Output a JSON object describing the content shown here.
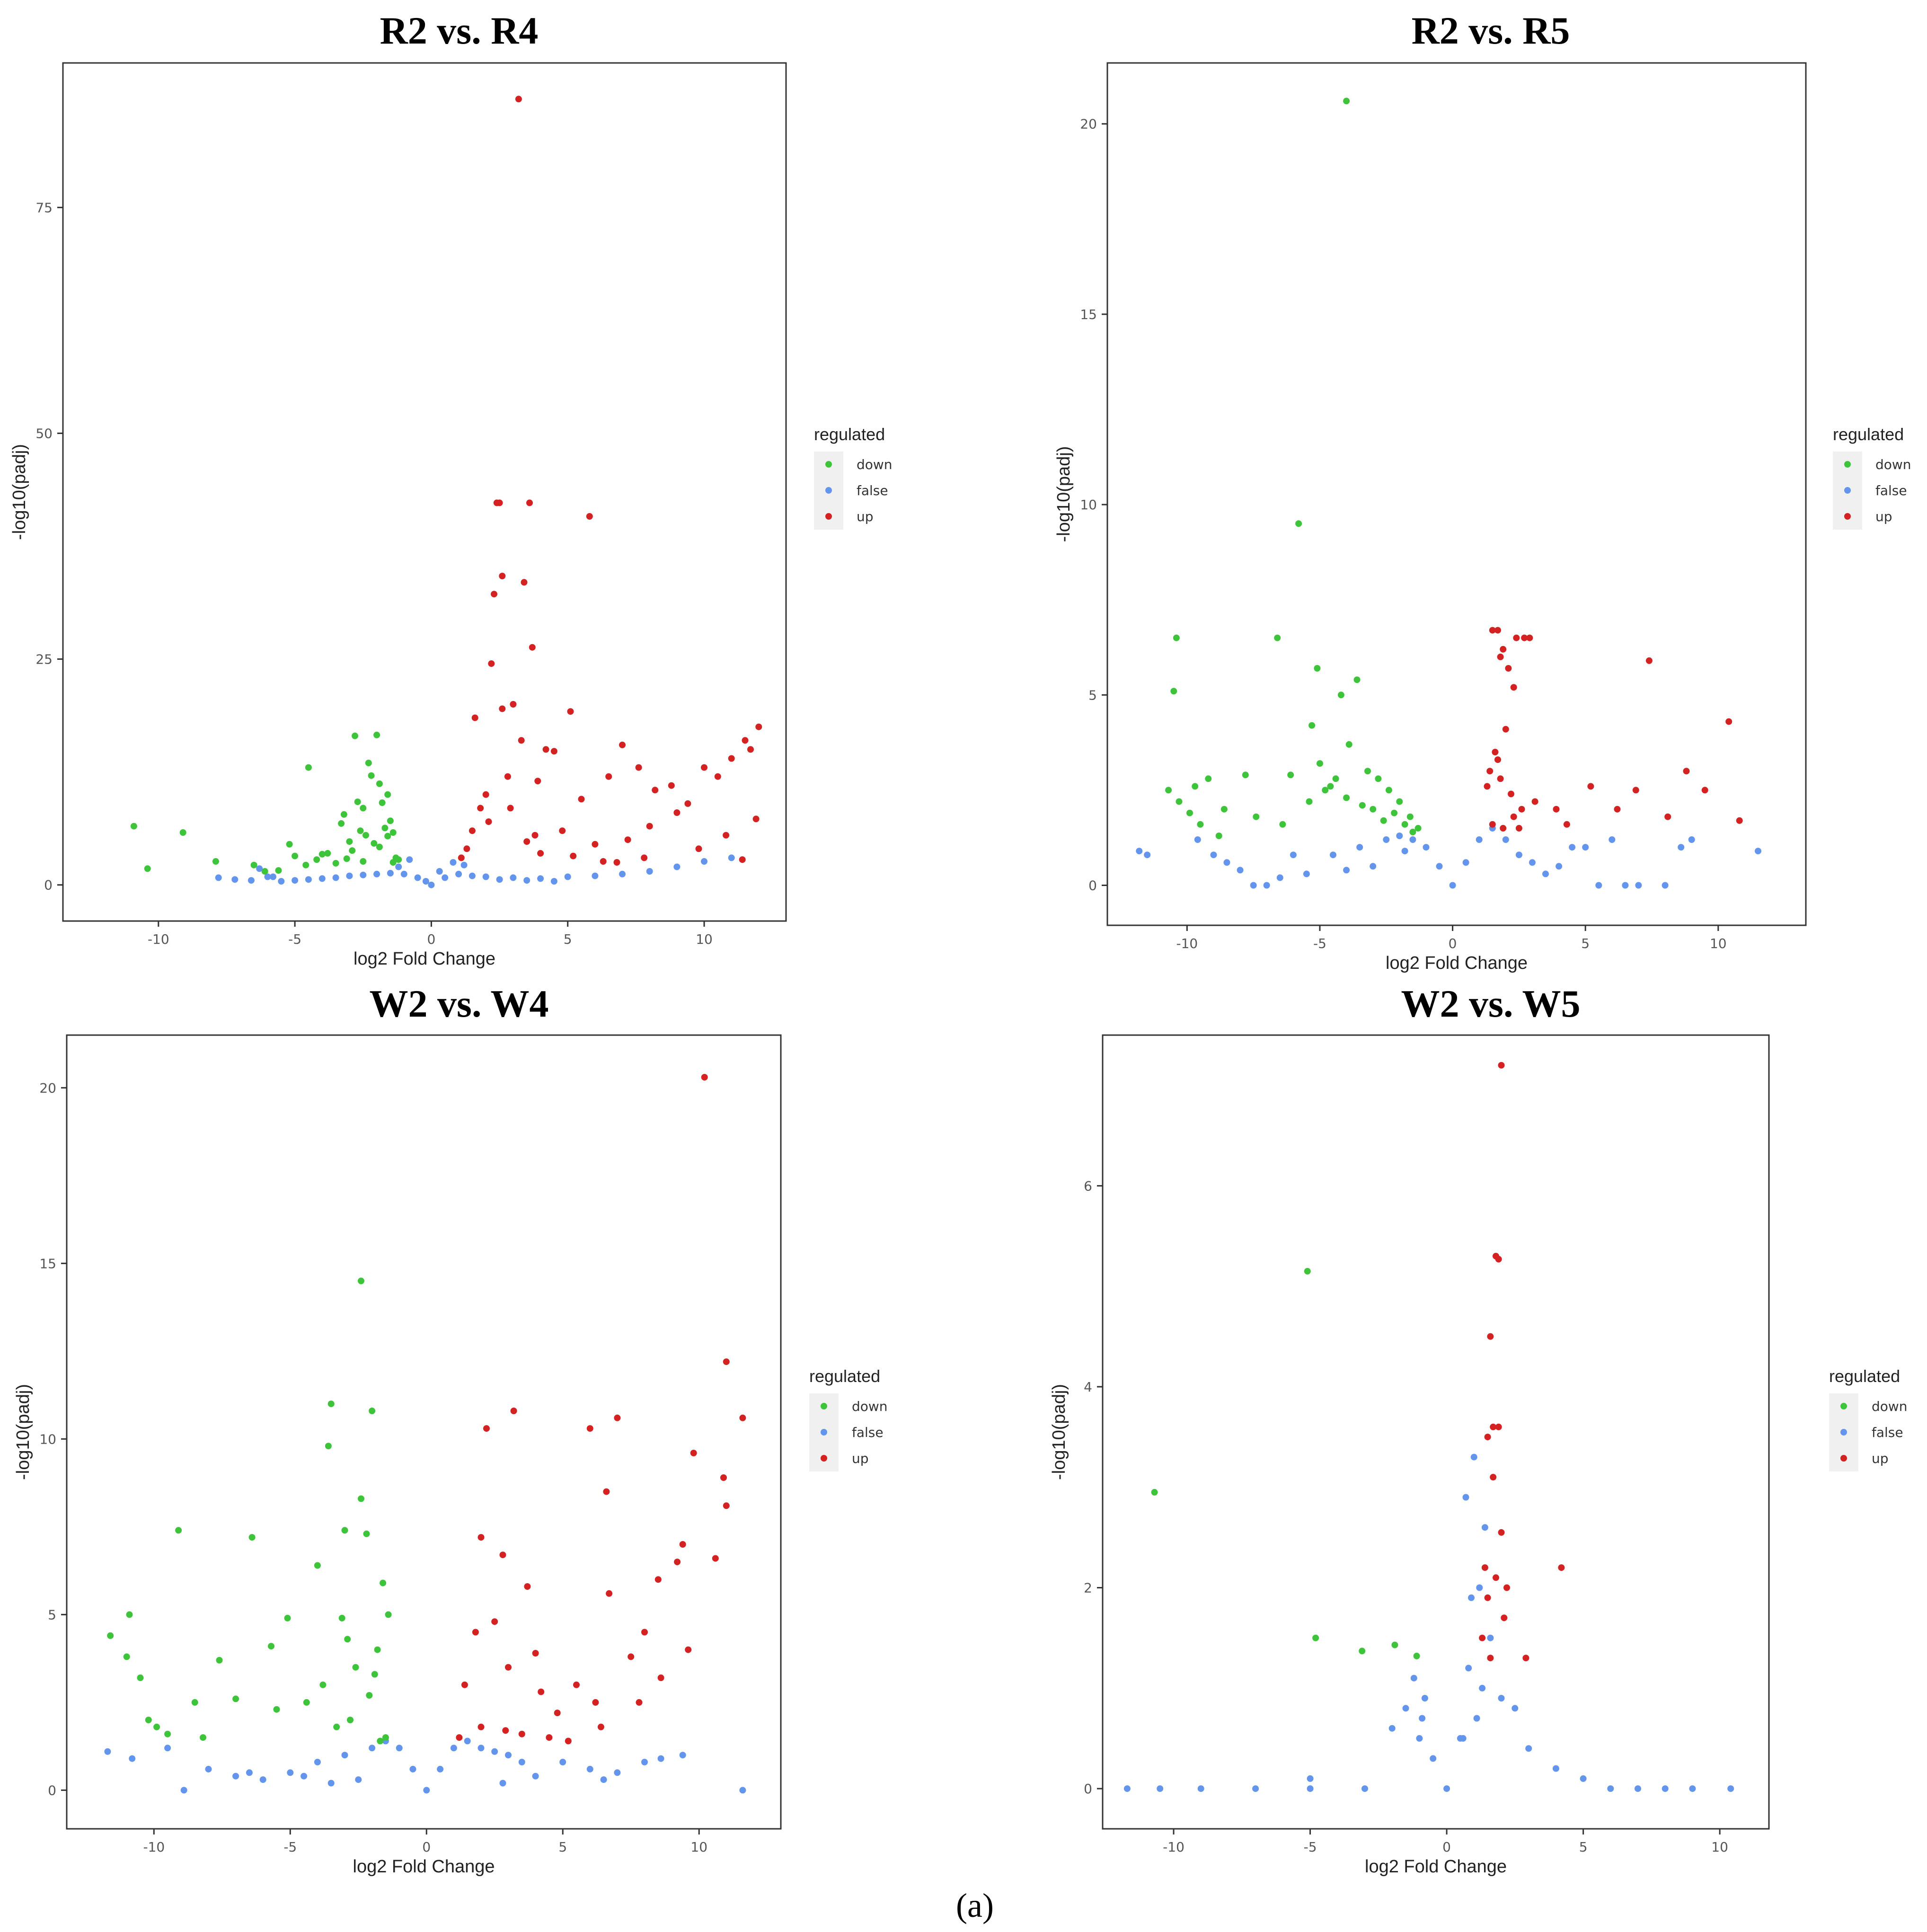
{
  "figure": {
    "caption": "(a)",
    "colors": {
      "down": "#3ec43a",
      "false": "#6495ed",
      "up": "#d42222"
    }
  },
  "chart_data": [
    {
      "type": "scatter",
      "title": "R2 vs. R4",
      "xlabel": "log2 Fold Change",
      "ylabel": "-log10(padj)",
      "xlim": [
        -13.5,
        13
      ],
      "ylim": [
        -4,
        91
      ],
      "xticks": [
        -10,
        -5,
        0,
        5,
        10
      ],
      "yticks": [
        0,
        25,
        50,
        75
      ],
      "legend": {
        "title": "regulated",
        "entries": [
          "down",
          "false",
          "up"
        ],
        "position": "right"
      },
      "series": [
        {
          "name": "down",
          "x": [
            -10.9,
            -10.4,
            -9.1,
            -7.9,
            -6.5,
            -5.2,
            -5.0,
            -4.5,
            -3.2,
            -2.8,
            -2.5,
            -2.3,
            -2.0,
            -1.8,
            -1.6,
            -1.4,
            -3.8,
            -4.2,
            -2.2,
            -1.9,
            -2.6,
            -1.5,
            -3.0,
            -2.4,
            -1.7,
            -1.3,
            -3.5,
            -4.6,
            -2.9,
            -2.1,
            -1.6,
            -1.2,
            -4.0,
            -3.3,
            -2.7,
            -1.9,
            -1.4,
            -2.5,
            -3.1,
            -5.6,
            -6.1
          ],
          "y": [
            6.5,
            1.8,
            5.8,
            2.6,
            2.2,
            4.5,
            3.2,
            13.0,
            7.8,
            16.5,
            8.5,
            13.5,
            16.6,
            9.1,
            10.0,
            2.5,
            3.5,
            2.8,
            12.1,
            11.2,
            6.0,
            7.1,
            4.8,
            5.5,
            6.3,
            3.0,
            2.4,
            2.2,
            3.8,
            4.6,
            5.4,
            2.8,
            3.4,
            6.8,
            9.2,
            4.2,
            5.8,
            2.6,
            2.9,
            1.6,
            1.5
          ]
        },
        {
          "name": "false",
          "x": [
            -7.8,
            -7.2,
            -6.6,
            -6.0,
            -5.5,
            -5.0,
            -4.5,
            -4.0,
            -3.5,
            -3.0,
            -2.5,
            -2.0,
            -1.5,
            -1.0,
            -0.5,
            0.0,
            0.5,
            1.0,
            1.5,
            2.0,
            3.0,
            4.0,
            5.0,
            6.0,
            7.0,
            8.0,
            9.0,
            10.0,
            11.0,
            -0.8,
            0.3,
            -0.2,
            0.8,
            -6.3,
            -5.8,
            -1.2,
            1.2,
            2.5,
            3.5,
            4.5
          ],
          "y": [
            0.8,
            0.6,
            0.5,
            0.9,
            0.4,
            0.5,
            0.6,
            0.7,
            0.8,
            1.0,
            1.1,
            1.2,
            1.3,
            1.2,
            0.8,
            0.0,
            0.8,
            1.2,
            1.0,
            0.9,
            0.8,
            0.7,
            0.9,
            1.0,
            1.2,
            1.5,
            2.0,
            2.6,
            3.0,
            2.8,
            1.5,
            0.4,
            2.5,
            1.8,
            0.9,
            2.0,
            2.2,
            0.6,
            0.5,
            0.4
          ]
        },
        {
          "name": "up",
          "x": [
            3.2,
            2.4,
            2.5,
            3.6,
            5.8,
            2.6,
            3.4,
            2.3,
            3.7,
            2.2,
            1.6,
            2.6,
            3.0,
            3.3,
            5.1,
            2.8,
            4.2,
            2.0,
            1.8,
            3.9,
            4.5,
            5.5,
            6.5,
            7.0,
            7.6,
            8.2,
            8.8,
            9.4,
            10.0,
            10.5,
            11.0,
            11.5,
            12.0,
            11.7,
            11.9,
            9.0,
            8.0,
            7.2,
            6.0,
            4.8,
            3.8,
            1.3,
            1.1,
            1.5,
            2.1,
            2.9,
            3.5,
            4.0,
            6.8,
            7.8,
            9.8,
            10.8,
            11.4,
            5.2,
            6.3
          ],
          "y": [
            87.0,
            42.3,
            42.3,
            42.3,
            40.8,
            34.2,
            33.5,
            32.2,
            26.3,
            24.5,
            18.5,
            19.5,
            20.0,
            16.0,
            19.2,
            12.0,
            15.0,
            10.0,
            8.5,
            11.5,
            14.8,
            9.5,
            12.0,
            15.5,
            13.0,
            10.5,
            11.0,
            9.0,
            13.0,
            12.0,
            14.0,
            16.0,
            17.5,
            15.0,
            7.3,
            8.0,
            6.5,
            5.0,
            4.5,
            6.0,
            5.5,
            4.0,
            3.0,
            6.0,
            7.0,
            8.5,
            4.8,
            3.5,
            2.5,
            3.0,
            4.0,
            5.5,
            2.8,
            3.2,
            2.6
          ]
        }
      ]
    },
    {
      "type": "scatter",
      "title": "R2 vs. R5",
      "xlabel": "log2 Fold Change",
      "ylabel": "-log10(padj)",
      "xlim": [
        -13,
        13.3
      ],
      "ylim": [
        -1.05,
        21.6
      ],
      "xticks": [
        -10,
        -5,
        0,
        5,
        10
      ],
      "yticks": [
        0,
        5,
        10,
        15,
        20
      ],
      "legend": {
        "title": "regulated",
        "entries": [
          "down",
          "false",
          "up"
        ],
        "position": "right"
      },
      "series": [
        {
          "name": "down",
          "x": [
            -4.0,
            -5.8,
            -10.4,
            -10.5,
            -6.6,
            -5.1,
            -3.6,
            -4.2,
            -5.3,
            -3.9,
            -7.8,
            -6.1,
            -9.2,
            -9.7,
            -10.3,
            -10.7,
            -8.6,
            -7.4,
            -6.4,
            -5.4,
            -4.8,
            -4.4,
            -3.2,
            -2.8,
            -2.4,
            -2.0,
            -1.6,
            -1.3,
            -3.0,
            -2.6,
            -2.2,
            -1.8,
            -1.5,
            -5.0,
            -4.6,
            -4.0,
            -3.4,
            -9.9,
            -9.5,
            -8.8
          ],
          "y": [
            20.6,
            9.5,
            6.5,
            5.1,
            6.5,
            5.7,
            5.4,
            5.0,
            4.2,
            3.7,
            2.9,
            2.9,
            2.8,
            2.6,
            2.2,
            2.5,
            2.0,
            1.8,
            1.6,
            2.2,
            2.5,
            2.8,
            3.0,
            2.8,
            2.5,
            2.2,
            1.8,
            1.5,
            2.0,
            1.7,
            1.9,
            1.6,
            1.4,
            3.2,
            2.6,
            2.3,
            2.1,
            1.9,
            1.6,
            1.3
          ]
        },
        {
          "name": "false",
          "x": [
            -11.8,
            -11.5,
            -8.5,
            -8.0,
            -7.5,
            -6.5,
            -5.5,
            -4.5,
            -3.5,
            -2.5,
            -2.0,
            -1.5,
            -1.0,
            -0.5,
            0.0,
            0.5,
            1.0,
            1.5,
            2.0,
            2.5,
            3.0,
            4.0,
            5.0,
            6.0,
            7.0,
            8.0,
            9.0,
            11.5,
            -9.0,
            -9.6,
            -7.0,
            -3.0,
            3.5,
            4.5,
            8.6,
            6.5,
            5.5,
            -6.0,
            -4.0,
            -1.8
          ],
          "y": [
            0.9,
            0.8,
            0.6,
            0.4,
            0.0,
            0.2,
            0.3,
            0.8,
            1.0,
            1.2,
            1.3,
            1.2,
            1.0,
            0.5,
            0.0,
            0.6,
            1.2,
            1.5,
            1.2,
            0.8,
            0.6,
            0.5,
            1.0,
            1.2,
            0.0,
            0.0,
            1.2,
            0.9,
            0.8,
            1.2,
            0.0,
            0.5,
            0.3,
            1.0,
            1.0,
            0.0,
            0.0,
            0.8,
            0.4,
            0.9
          ]
        },
        {
          "name": "up",
          "x": [
            1.5,
            1.7,
            1.9,
            1.8,
            2.1,
            2.4,
            2.7,
            2.9,
            7.4,
            10.4,
            2.3,
            2.0,
            1.6,
            1.4,
            1.3,
            1.8,
            2.2,
            2.6,
            3.1,
            3.9,
            4.3,
            5.2,
            6.2,
            6.9,
            8.1,
            8.8,
            9.5,
            10.8,
            1.5,
            1.9,
            2.3,
            1.7,
            2.5
          ],
          "y": [
            6.7,
            6.7,
            6.2,
            6.0,
            5.7,
            6.5,
            6.5,
            6.5,
            5.9,
            4.3,
            5.2,
            4.1,
            3.5,
            3.0,
            2.6,
            2.8,
            2.4,
            2.0,
            2.2,
            2.0,
            1.6,
            2.6,
            2.0,
            2.5,
            1.8,
            3.0,
            2.5,
            1.7,
            1.6,
            1.5,
            1.8,
            3.3,
            1.5
          ]
        }
      ]
    },
    {
      "type": "scatter",
      "title": "W2 vs. W4",
      "xlabel": "log2 Fold Change",
      "ylabel": "-log10(padj)",
      "xlim": [
        -13.2,
        13
      ],
      "ylim": [
        -1.1,
        21.5
      ],
      "xticks": [
        -10,
        -5,
        0,
        5,
        10
      ],
      "yticks": [
        0,
        5,
        10,
        15,
        20
      ],
      "legend": {
        "title": "regulated",
        "entries": [
          "down",
          "false",
          "up"
        ],
        "position": "right"
      },
      "series": [
        {
          "name": "down",
          "x": [
            -2.4,
            -3.5,
            -2.0,
            -3.6,
            -2.4,
            -6.4,
            -9.1,
            -10.9,
            -11.6,
            -11.0,
            -10.5,
            -8.5,
            -7.6,
            -3.0,
            -2.2,
            -3.1,
            -4.0,
            -5.1,
            -5.7,
            -1.6,
            -1.4,
            -1.8,
            -2.6,
            -3.8,
            -4.4,
            -2.8,
            -1.5,
            -2.1,
            -1.9,
            -10.2,
            -9.9,
            -9.5,
            -8.2,
            -7.0,
            -5.5,
            -2.9,
            -1.7,
            -3.3
          ],
          "y": [
            14.5,
            11.0,
            10.8,
            9.8,
            8.3,
            7.2,
            7.4,
            5.0,
            4.4,
            3.8,
            3.2,
            2.5,
            3.7,
            7.4,
            7.3,
            4.9,
            6.4,
            4.9,
            4.1,
            5.9,
            5.0,
            4.0,
            3.5,
            3.0,
            2.5,
            2.0,
            1.5,
            2.7,
            3.3,
            2.0,
            1.8,
            1.6,
            1.5,
            2.6,
            2.3,
            4.3,
            1.4,
            1.8
          ]
        },
        {
          "name": "false",
          "x": [
            -11.7,
            -10.8,
            -8.9,
            -8.0,
            -7.0,
            -6.0,
            -5.0,
            -4.0,
            -3.0,
            -2.0,
            -1.5,
            -1.0,
            -0.5,
            0.0,
            0.5,
            1.0,
            1.5,
            2.0,
            2.5,
            3.0,
            3.5,
            4.0,
            5.0,
            6.0,
            7.0,
            8.0,
            8.6,
            11.6,
            -9.5,
            9.4,
            -3.5,
            -2.5,
            2.8,
            6.5,
            -6.5,
            -4.5
          ],
          "y": [
            1.1,
            0.9,
            0.0,
            0.6,
            0.4,
            0.3,
            0.5,
            0.8,
            1.0,
            1.2,
            1.4,
            1.2,
            0.6,
            0.0,
            0.6,
            1.2,
            1.4,
            1.2,
            1.1,
            1.0,
            0.8,
            0.4,
            0.8,
            0.6,
            0.5,
            0.8,
            0.9,
            0.0,
            1.2,
            1.0,
            0.2,
            0.3,
            0.2,
            0.3,
            0.5,
            0.4
          ]
        },
        {
          "name": "up",
          "x": [
            10.2,
            11.0,
            11.6,
            10.6,
            10.9,
            11.0,
            3.2,
            2.8,
            2.2,
            6.0,
            7.0,
            6.6,
            2.0,
            3.7,
            6.7,
            4.0,
            9.8,
            9.4,
            8.5,
            9.2,
            8.0,
            7.5,
            6.2,
            5.5,
            4.8,
            4.2,
            3.0,
            2.5,
            1.8,
            1.4,
            1.2,
            2.0,
            2.9,
            3.5,
            4.5,
            5.2,
            6.4,
            7.8,
            8.6,
            9.6
          ],
          "y": [
            20.3,
            12.2,
            10.6,
            6.6,
            8.9,
            8.1,
            10.8,
            6.7,
            10.3,
            10.3,
            10.6,
            8.5,
            7.2,
            5.8,
            5.6,
            3.9,
            9.6,
            7.0,
            6.0,
            6.5,
            4.5,
            3.8,
            2.5,
            3.0,
            2.2,
            2.8,
            3.5,
            4.8,
            4.5,
            3.0,
            1.5,
            1.8,
            1.7,
            1.6,
            1.5,
            1.4,
            1.8,
            2.5,
            3.2,
            4.0
          ]
        }
      ]
    },
    {
      "type": "scatter",
      "title": "W2 vs. W5",
      "xlabel": "log2 Fold Change",
      "ylabel": "-log10(padj)",
      "xlim": [
        -12.6,
        11.8
      ],
      "ylim": [
        -0.4,
        7.5
      ],
      "xticks": [
        -10,
        -5,
        0,
        5,
        10
      ],
      "yticks": [
        0,
        2,
        4,
        6
      ],
      "legend": {
        "title": "regulated",
        "entries": [
          "down",
          "false",
          "up"
        ],
        "position": "right"
      },
      "series": [
        {
          "name": "down",
          "x": [
            -5.1,
            -10.7,
            -4.8,
            -3.1,
            -1.9,
            -1.1
          ],
          "y": [
            5.15,
            2.95,
            1.5,
            1.37,
            1.43,
            1.32
          ]
        },
        {
          "name": "false",
          "x": [
            -11.7,
            -10.5,
            -9.0,
            -7.0,
            -5.0,
            -3.0,
            -2.0,
            -1.5,
            -1.0,
            -0.8,
            -0.5,
            0.0,
            0.5,
            0.8,
            1.0,
            1.2,
            1.4,
            1.6,
            2.0,
            2.5,
            3.0,
            4.0,
            5.0,
            6.0,
            7.0,
            8.0,
            9.0,
            10.4,
            -5.0,
            -1.2,
            -0.9,
            0.7,
            0.9,
            1.1,
            0.6,
            1.3
          ],
          "y": [
            0.0,
            0.0,
            0.0,
            0.0,
            0.0,
            0.0,
            0.6,
            0.8,
            0.5,
            0.9,
            0.3,
            0.0,
            0.5,
            1.2,
            3.3,
            2.0,
            2.6,
            1.5,
            0.9,
            0.8,
            0.4,
            0.2,
            0.1,
            0.0,
            0.0,
            0.0,
            0.0,
            0.0,
            0.1,
            1.1,
            0.7,
            2.9,
            1.9,
            0.7,
            0.5,
            1.0
          ]
        },
        {
          "name": "up",
          "x": [
            2.0,
            1.8,
            1.9,
            1.6,
            1.7,
            1.9,
            1.5,
            1.7,
            2.0,
            1.4,
            1.8,
            4.2,
            2.9,
            1.5,
            2.2,
            1.3,
            1.6,
            2.1
          ],
          "y": [
            7.2,
            5.3,
            5.27,
            4.5,
            3.6,
            3.6,
            3.5,
            3.1,
            2.55,
            2.2,
            2.1,
            2.2,
            1.3,
            1.9,
            2.0,
            1.5,
            1.3,
            1.7
          ]
        }
      ]
    }
  ]
}
